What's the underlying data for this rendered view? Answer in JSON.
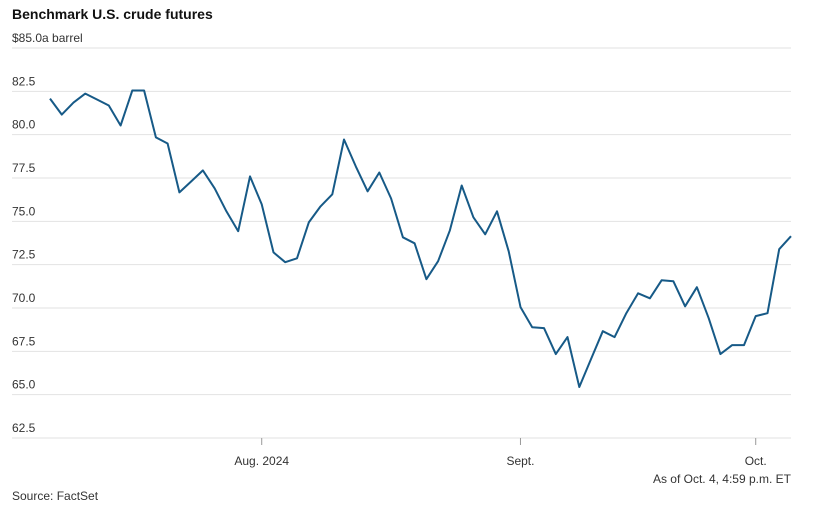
{
  "chart_data": {
    "type": "line",
    "title": "Benchmark U.S. crude futures",
    "categories": [
      null,
      null,
      null,
      null,
      null,
      null,
      null,
      null,
      null,
      null,
      null,
      null,
      null,
      null,
      null,
      null,
      null,
      null,
      "Aug. 2024",
      null,
      null,
      null,
      null,
      null,
      null,
      null,
      null,
      null,
      null,
      null,
      null,
      null,
      null,
      null,
      null,
      null,
      null,
      null,
      null,
      null,
      "Sept.",
      null,
      null,
      null,
      null,
      null,
      null,
      null,
      null,
      null,
      null,
      null,
      null,
      null,
      null,
      null,
      null,
      null,
      null,
      null,
      "Oct.",
      null,
      null,
      null
    ],
    "series": [
      {
        "name": "Benchmark U.S. crude futures",
        "color": "#175a87",
        "values": [
          82.08,
          81.16,
          81.85,
          82.37,
          82.03,
          81.68,
          80.53,
          82.55,
          82.55,
          79.84,
          79.49,
          76.67,
          77.3,
          77.94,
          76.9,
          75.58,
          74.43,
          77.59,
          75.98,
          73.21,
          72.64,
          72.87,
          74.94,
          75.86,
          76.56,
          79.72,
          78.17,
          76.73,
          77.82,
          76.32,
          74.08,
          73.73,
          71.66,
          72.7,
          74.48,
          77.07,
          75.23,
          74.25,
          75.58,
          73.27,
          70.05,
          68.89,
          68.84,
          67.34,
          68.32,
          65.44,
          67.05,
          68.66,
          68.32,
          69.7,
          70.85,
          70.56,
          71.6,
          71.54,
          70.1,
          71.2,
          69.41,
          67.34,
          67.86,
          67.86,
          69.53,
          69.7,
          73.39,
          74.14
        ]
      }
    ],
    "ylim": [
      62.5,
      85
    ],
    "yticks": [
      62.5,
      {
        "value": 65,
        "label": "65.0"
      },
      67.5,
      {
        "value": 70,
        "label": "70.0"
      },
      72.5,
      {
        "value": 75,
        "label": "75.0"
      },
      77.5,
      {
        "value": 80,
        "label": "80.0"
      },
      82.5,
      {
        "value": 85,
        "label": "$85.0a barrel"
      }
    ],
    "grid": true,
    "note": "As of Oct. 4, 4:59 p.m. ET",
    "source": "Source: FactSet"
  }
}
